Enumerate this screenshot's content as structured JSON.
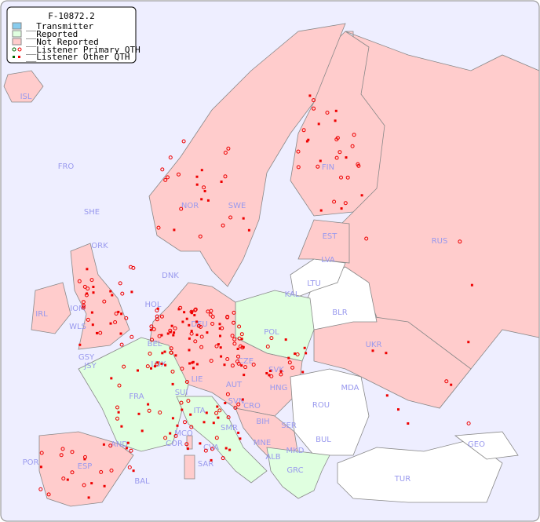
{
  "title": "F-10872.2",
  "legend": {
    "transmitter": "__Transmitter",
    "reported": "__Reported",
    "not_reported": "__Not Reported",
    "primary_qth": "__Listener Primary QTH",
    "other_qth": "__Listener Other QTH"
  },
  "colors": {
    "background": "#eeeeff",
    "transmitter": "#88ccee",
    "reported": "#e0ffe0",
    "not_reported": "#ffcccc",
    "no_data": "#ffffff",
    "listener": "#ee0000",
    "listener_reported": "#006600",
    "label": "#9999ee"
  },
  "countries": {
    "not_reported": [
      "ISL",
      "FRO",
      "SHE",
      "ORK",
      "NOR",
      "SWE",
      "FIN",
      "EST",
      "LVA",
      "RUS",
      "DNK",
      "HOL",
      "DEU",
      "IRL",
      "GBR",
      "IOM",
      "WLS",
      "GSY",
      "JSY",
      "BEL",
      "LUX",
      "CZE",
      "SVK",
      "AUT",
      "HNG",
      "UKR",
      "SUI",
      "LIE",
      "SVN",
      "CRO",
      "BIH",
      "SER",
      "ITA",
      "MCO",
      "COR",
      "CVA",
      "SAR",
      "SMR",
      "MNE",
      "ESP",
      "POR",
      "BAL",
      "AND",
      "GRC"
    ],
    "reported": [
      "POL",
      "FRA",
      "ALB",
      "MKD"
    ],
    "no_data": [
      "LTU",
      "KAL",
      "BLR",
      "MDA",
      "ROU",
      "BUL",
      "TUR",
      "GEO"
    ],
    "labels": [
      "ISL",
      "FRO",
      "SHE",
      "ORK",
      "NOR",
      "SWE",
      "FIN",
      "EST",
      "LVA",
      "RUS",
      "LTU",
      "KAL",
      "BLR",
      "DNK",
      "HOL",
      "DEU",
      "POL",
      "IRL",
      "IOM",
      "WLS",
      "GSY",
      "JSY",
      "BEL",
      "LUX",
      "CZE",
      "SVK",
      "UKR",
      "AUT",
      "HNG",
      "MDA",
      "FRA",
      "SUI",
      "LIE",
      "SVN",
      "CRO",
      "ROU",
      "ITA",
      "BIH",
      "SER",
      "MCO",
      "COR",
      "SMR",
      "CVA",
      "MNE",
      "BUL",
      "GEO",
      "AND",
      "ESP",
      "POR",
      "SAR",
      "ALB",
      "MKD",
      "GRC",
      "TUR",
      "BAL"
    ]
  }
}
